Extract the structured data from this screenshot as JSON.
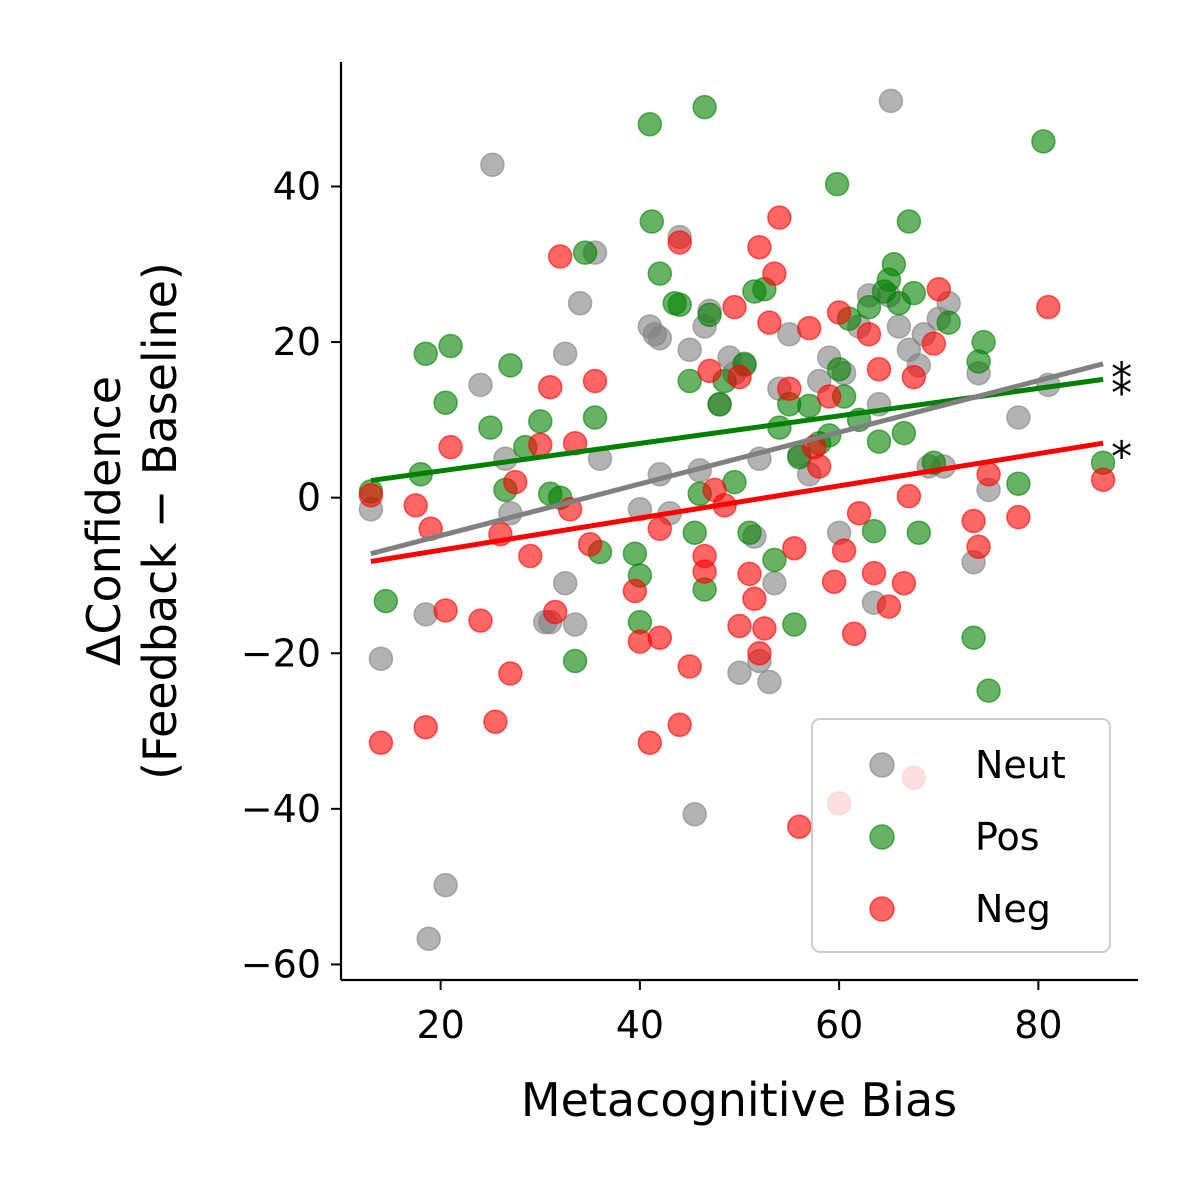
{
  "chart_data": {
    "type": "scatter",
    "xlabel": "Metacognitive Bias",
    "ylabel_line1": "ΔConfidence",
    "ylabel_line2": "(Feedback − Baseline)",
    "xlim": [
      10,
      90
    ],
    "ylim": [
      -62,
      56
    ],
    "xticks": [
      20,
      40,
      60,
      80
    ],
    "yticks": [
      -60,
      -40,
      -20,
      0,
      20,
      40
    ],
    "grid": false,
    "legend_position": "lower-right",
    "series": [
      {
        "name": "Neut",
        "color": "#808080",
        "alpha": 0.6,
        "fit": {
          "x": [
            13,
            86.5
          ],
          "y": [
            -7.2,
            17.2
          ]
        },
        "significance": "*",
        "points": [
          [
            13,
            -1.5
          ],
          [
            14,
            -20.7
          ],
          [
            18.5,
            -15
          ],
          [
            18.8,
            -56.7
          ],
          [
            20.5,
            -49.8
          ],
          [
            24,
            14.5
          ],
          [
            25.2,
            42.8
          ],
          [
            27,
            -2
          ],
          [
            26.5,
            5
          ],
          [
            30.5,
            -16
          ],
          [
            31,
            -16
          ],
          [
            32.5,
            18.5
          ],
          [
            32.5,
            -11
          ],
          [
            33.5,
            -16.3
          ],
          [
            34,
            25
          ],
          [
            35.5,
            31.5
          ],
          [
            36,
            5
          ],
          [
            40,
            -1.5
          ],
          [
            41,
            22
          ],
          [
            41.5,
            21
          ],
          [
            42,
            20.5
          ],
          [
            42,
            3
          ],
          [
            43,
            -2
          ],
          [
            44,
            33.5
          ],
          [
            45,
            19
          ],
          [
            45.5,
            -40.7
          ],
          [
            46,
            3.5
          ],
          [
            46.5,
            22
          ],
          [
            47,
            24
          ],
          [
            48,
            12
          ],
          [
            49,
            18
          ],
          [
            49.5,
            16
          ],
          [
            50,
            -22.5
          ],
          [
            50.5,
            17
          ],
          [
            51.5,
            -5
          ],
          [
            52,
            -21
          ],
          [
            52,
            5
          ],
          [
            53,
            -23.7
          ],
          [
            53.5,
            -11
          ],
          [
            54,
            14
          ],
          [
            55,
            21
          ],
          [
            56,
            5.5
          ],
          [
            57,
            3
          ],
          [
            58,
            15
          ],
          [
            59,
            18
          ],
          [
            60,
            -4.5
          ],
          [
            60.5,
            16
          ],
          [
            62,
            22
          ],
          [
            63,
            26
          ],
          [
            63.5,
            -13.5
          ],
          [
            64,
            12
          ],
          [
            65,
            26
          ],
          [
            65.2,
            51
          ],
          [
            66,
            22
          ],
          [
            67,
            19
          ],
          [
            68,
            17
          ],
          [
            68.5,
            21
          ],
          [
            69,
            4
          ],
          [
            70,
            23
          ],
          [
            70.5,
            4
          ],
          [
            71,
            25
          ],
          [
            73.5,
            -8.3
          ],
          [
            74,
            16
          ],
          [
            75,
            1
          ],
          [
            78,
            10.3
          ],
          [
            81,
            14.5
          ]
        ]
      },
      {
        "name": "Pos",
        "color": "#008000",
        "alpha": 0.6,
        "fit": {
          "x": [
            13,
            86.5
          ],
          "y": [
            2.2,
            15.2
          ]
        },
        "significance": "*",
        "points": [
          [
            13,
            0.8
          ],
          [
            14.5,
            -13.3
          ],
          [
            18,
            3
          ],
          [
            18.5,
            18.5
          ],
          [
            21,
            19.5
          ],
          [
            20.5,
            12.2
          ],
          [
            25,
            9
          ],
          [
            26.5,
            1
          ],
          [
            27,
            17
          ],
          [
            28.5,
            6.5
          ],
          [
            30,
            9.8
          ],
          [
            31,
            0.5
          ],
          [
            32,
            0
          ],
          [
            33.5,
            -21
          ],
          [
            34.5,
            31.5
          ],
          [
            35.5,
            10.3
          ],
          [
            36,
            -7
          ],
          [
            39.5,
            -7.2
          ],
          [
            40,
            -16
          ],
          [
            40,
            -10
          ],
          [
            41,
            48
          ],
          [
            41.2,
            35.5
          ],
          [
            42,
            28.8
          ],
          [
            43.5,
            25
          ],
          [
            44,
            24.8
          ],
          [
            45,
            15
          ],
          [
            45.5,
            -4.5
          ],
          [
            46,
            0.5
          ],
          [
            46.5,
            50.2
          ],
          [
            47,
            23.5
          ],
          [
            46.5,
            -11.8
          ],
          [
            48,
            12
          ],
          [
            48.5,
            15
          ],
          [
            49.5,
            2
          ],
          [
            50.5,
            17.2
          ],
          [
            51,
            -4.5
          ],
          [
            51.5,
            26.5
          ],
          [
            52.5,
            26.8
          ],
          [
            53.5,
            -8
          ],
          [
            54,
            9
          ],
          [
            55,
            12
          ],
          [
            55.5,
            -16.3
          ],
          [
            56,
            5.2
          ],
          [
            57,
            11.8
          ],
          [
            58,
            7
          ],
          [
            59,
            8
          ],
          [
            59.8,
            40.3
          ],
          [
            60,
            16.5
          ],
          [
            60.5,
            13
          ],
          [
            61,
            23
          ],
          [
            62,
            10
          ],
          [
            63,
            24.5
          ],
          [
            63.5,
            -4.3
          ],
          [
            64,
            7.2
          ],
          [
            64.5,
            26.5
          ],
          [
            65,
            28
          ],
          [
            65.5,
            30
          ],
          [
            66,
            25
          ],
          [
            66.5,
            8.3
          ],
          [
            67,
            35.5
          ],
          [
            67.5,
            26.3
          ],
          [
            68,
            -4.5
          ],
          [
            69.5,
            4.5
          ],
          [
            71,
            22.5
          ],
          [
            73.5,
            -18
          ],
          [
            74,
            17.5
          ],
          [
            74.5,
            20
          ],
          [
            75,
            -24.8
          ],
          [
            78,
            1.8
          ],
          [
            80.5,
            45.8
          ],
          [
            86.5,
            4.5
          ]
        ]
      },
      {
        "name": "Neg",
        "color": "#ff0000",
        "alpha": 0.6,
        "fit": {
          "x": [
            13,
            86.5
          ],
          "y": [
            -8.2,
            7.0
          ]
        },
        "significance": "*",
        "points": [
          [
            13,
            0.3
          ],
          [
            14,
            -31.5
          ],
          [
            17.5,
            -1
          ],
          [
            18.5,
            -29.5
          ],
          [
            19,
            -4
          ],
          [
            20.5,
            -14.5
          ],
          [
            21,
            6.5
          ],
          [
            24,
            -15.8
          ],
          [
            25.5,
            -28.8
          ],
          [
            26,
            -4.7
          ],
          [
            27,
            -22.6
          ],
          [
            27.5,
            2
          ],
          [
            29,
            -7.5
          ],
          [
            30,
            6.8
          ],
          [
            31,
            14.2
          ],
          [
            31.5,
            -14.7
          ],
          [
            32,
            31
          ],
          [
            33,
            -1.5
          ],
          [
            33.5,
            7
          ],
          [
            35,
            -6
          ],
          [
            35.5,
            15
          ],
          [
            39.5,
            -12
          ],
          [
            40,
            -18.5
          ],
          [
            41,
            -31.5
          ],
          [
            42,
            -18
          ],
          [
            42,
            -4
          ],
          [
            44,
            32.8
          ],
          [
            44,
            -29.2
          ],
          [
            45,
            -21.7
          ],
          [
            46.5,
            -9.5
          ],
          [
            46.5,
            -7.5
          ],
          [
            47,
            16.3
          ],
          [
            47.5,
            1
          ],
          [
            48.5,
            -1
          ],
          [
            49.5,
            24.5
          ],
          [
            50,
            15.5
          ],
          [
            50,
            -16.5
          ],
          [
            51,
            -9.8
          ],
          [
            51.5,
            -13
          ],
          [
            52,
            -20
          ],
          [
            52,
            32.2
          ],
          [
            52.5,
            -16.8
          ],
          [
            53,
            22.5
          ],
          [
            53.5,
            28.8
          ],
          [
            54,
            36
          ],
          [
            55,
            14
          ],
          [
            55.5,
            -6.5
          ],
          [
            56,
            -42.3
          ],
          [
            57,
            21.8
          ],
          [
            57.5,
            6.5
          ],
          [
            58,
            4
          ],
          [
            59,
            13
          ],
          [
            59.5,
            -10.8
          ],
          [
            60,
            -39.3
          ],
          [
            60,
            23.8
          ],
          [
            60.5,
            -6.8
          ],
          [
            61.5,
            -17.5
          ],
          [
            62,
            -2
          ],
          [
            63,
            21
          ],
          [
            63.5,
            -9.7
          ],
          [
            64,
            16.5
          ],
          [
            65,
            -14
          ],
          [
            66.5,
            -11
          ],
          [
            67,
            0.2
          ],
          [
            67.5,
            -36
          ],
          [
            67.5,
            15.5
          ],
          [
            69.5,
            19.8
          ],
          [
            70,
            26.8
          ],
          [
            73.5,
            -3
          ],
          [
            74,
            -6.3
          ],
          [
            75,
            3
          ],
          [
            78,
            -2.5
          ],
          [
            81,
            24.5
          ],
          [
            86.5,
            2.3
          ]
        ]
      }
    ]
  }
}
